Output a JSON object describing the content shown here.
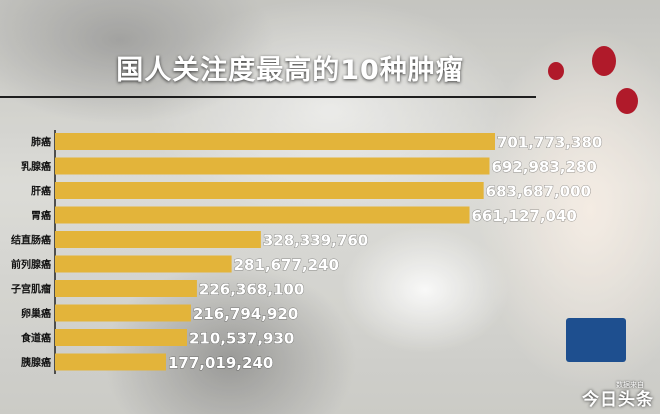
{
  "title": "国人关注度最高的10种肿瘤",
  "watermark": {
    "small": "数据来自",
    "main": "今日头条"
  },
  "colors": {
    "bar": "#e3b43a",
    "label": "#ffffff",
    "axis": "#222222"
  },
  "chart_data": {
    "type": "bar",
    "orientation": "horizontal",
    "title": "国人关注度最高的10种肿瘤",
    "xlabel": "",
    "ylabel": "",
    "categories": [
      "肺癌",
      "乳腺癌",
      "肝癌",
      "胃癌",
      "结直肠癌",
      "前列腺癌",
      "子宫肌瘤",
      "卵巢癌",
      "食道癌",
      "胰腺癌"
    ],
    "values": [
      701773380,
      692983280,
      683687000,
      661127040,
      328339760,
      281677240,
      226368100,
      216794920,
      210537930,
      177019240
    ],
    "value_labels": [
      "701,773,380",
      "692,983,280",
      "683,687,000",
      "661,127,040",
      "328,339,760",
      "281,677,240",
      "226,368,100",
      "216,794,920",
      "210,537,930",
      "177,019,240"
    ],
    "legend": "none",
    "grid": false
  }
}
